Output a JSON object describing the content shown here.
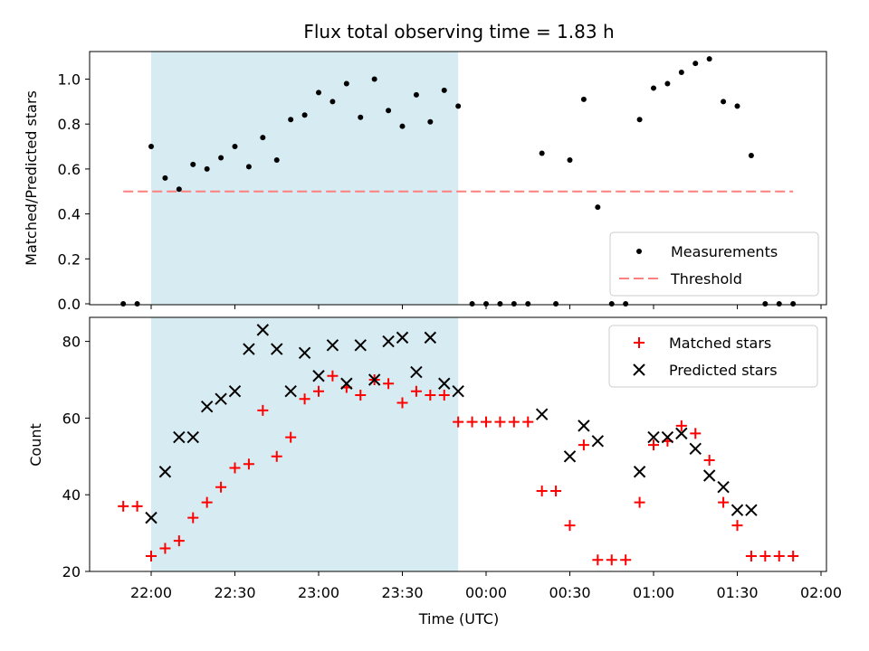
{
  "chart_data": [
    {
      "type": "scatter",
      "title": "Flux total observing time = 1.83 h",
      "ylabel": "Matched/Predicted stars",
      "xlabel": "",
      "ylim": [
        0,
        1.14
      ],
      "yticks": [
        "0.0",
        "0.2",
        "0.4",
        "0.6",
        "0.8",
        "1.0"
      ],
      "x_unit": "minutes after 22:00 UTC",
      "shaded_interval": [
        0,
        110
      ],
      "legend": {
        "placement": "lower right",
        "entries": [
          "Measurements",
          "Threshold"
        ]
      },
      "colors": {
        "measurements": "#000000",
        "threshold": "#ff7f7f",
        "shade": "#add8e6"
      },
      "threshold": {
        "name": "Threshold",
        "value": 0.5,
        "x_range": [
          -10,
          230
        ]
      },
      "series": [
        {
          "name": "Measurements",
          "points": [
            [
              -10,
              0.0
            ],
            [
              -5,
              0.0
            ],
            [
              0,
              0.7
            ],
            [
              5,
              0.56
            ],
            [
              10,
              0.51
            ],
            [
              15,
              0.62
            ],
            [
              20,
              0.6
            ],
            [
              25,
              0.65
            ],
            [
              30,
              0.7
            ],
            [
              35,
              0.61
            ],
            [
              40,
              0.74
            ],
            [
              45,
              0.64
            ],
            [
              50,
              0.82
            ],
            [
              55,
              0.84
            ],
            [
              60,
              0.94
            ],
            [
              65,
              0.9
            ],
            [
              70,
              0.98
            ],
            [
              75,
              0.83
            ],
            [
              80,
              1.0
            ],
            [
              85,
              0.86
            ],
            [
              90,
              0.79
            ],
            [
              95,
              0.93
            ],
            [
              100,
              0.81
            ],
            [
              105,
              0.95
            ],
            [
              110,
              0.88
            ],
            [
              115,
              0.0
            ],
            [
              120,
              0.0
            ],
            [
              125,
              0.0
            ],
            [
              130,
              0.0
            ],
            [
              135,
              0.0
            ],
            [
              140,
              0.67
            ],
            [
              145,
              0.0
            ],
            [
              150,
              0.64
            ],
            [
              155,
              0.91
            ],
            [
              160,
              0.43
            ],
            [
              165,
              0.0
            ],
            [
              170,
              0.0
            ],
            [
              175,
              0.82
            ],
            [
              180,
              0.96
            ],
            [
              185,
              0.98
            ],
            [
              190,
              1.03
            ],
            [
              195,
              1.07
            ],
            [
              200,
              1.09
            ],
            [
              205,
              0.9
            ],
            [
              210,
              0.88
            ],
            [
              215,
              0.66
            ],
            [
              220,
              0.0
            ],
            [
              225,
              0.0
            ],
            [
              230,
              0.0
            ]
          ]
        }
      ]
    },
    {
      "type": "scatter",
      "title": "",
      "ylabel": "Count",
      "xlabel": "Time (UTC)",
      "ylim": [
        20,
        87
      ],
      "yticks": [
        "20",
        "40",
        "60",
        "80"
      ],
      "x_unit": "minutes after 22:00 UTC",
      "xticks": [
        "22:00",
        "22:30",
        "23:00",
        "23:30",
        "00:00",
        "00:30",
        "01:00",
        "01:30",
        "02:00"
      ],
      "shaded_interval": [
        0,
        110
      ],
      "legend": {
        "placement": "upper right",
        "entries": [
          "Matched stars",
          "Predicted stars"
        ]
      },
      "colors": {
        "matched": "#ff0000",
        "predicted": "#000000",
        "shade": "#add8e6"
      },
      "series": [
        {
          "name": "Matched stars",
          "points": [
            [
              -10,
              37
            ],
            [
              -5,
              37
            ],
            [
              0,
              24
            ],
            [
              5,
              26
            ],
            [
              10,
              28
            ],
            [
              15,
              34
            ],
            [
              20,
              38
            ],
            [
              25,
              42
            ],
            [
              30,
              47
            ],
            [
              35,
              48
            ],
            [
              40,
              62
            ],
            [
              45,
              50
            ],
            [
              50,
              55
            ],
            [
              55,
              65
            ],
            [
              60,
              67
            ],
            [
              65,
              71
            ],
            [
              70,
              68
            ],
            [
              75,
              66
            ],
            [
              80,
              70
            ],
            [
              85,
              69
            ],
            [
              90,
              64
            ],
            [
              95,
              67
            ],
            [
              100,
              66
            ],
            [
              105,
              66
            ],
            [
              110,
              59
            ],
            [
              115,
              59
            ],
            [
              120,
              59
            ],
            [
              125,
              59
            ],
            [
              130,
              59
            ],
            [
              135,
              59
            ],
            [
              140,
              41
            ],
            [
              145,
              41
            ],
            [
              150,
              32
            ],
            [
              155,
              53
            ],
            [
              160,
              23
            ],
            [
              165,
              23
            ],
            [
              170,
              23
            ],
            [
              175,
              38
            ],
            [
              180,
              53
            ],
            [
              185,
              54
            ],
            [
              190,
              58
            ],
            [
              195,
              56
            ],
            [
              200,
              49
            ],
            [
              205,
              38
            ],
            [
              210,
              32
            ],
            [
              215,
              24
            ],
            [
              220,
              24
            ],
            [
              225,
              24
            ],
            [
              230,
              24
            ]
          ]
        },
        {
          "name": "Predicted stars",
          "points": [
            [
              0,
              34
            ],
            [
              5,
              46
            ],
            [
              10,
              55
            ],
            [
              15,
              55
            ],
            [
              20,
              63
            ],
            [
              25,
              65
            ],
            [
              30,
              67
            ],
            [
              35,
              78
            ],
            [
              40,
              83
            ],
            [
              45,
              78
            ],
            [
              50,
              67
            ],
            [
              55,
              77
            ],
            [
              60,
              71
            ],
            [
              65,
              79
            ],
            [
              70,
              69
            ],
            [
              75,
              79
            ],
            [
              80,
              70
            ],
            [
              85,
              80
            ],
            [
              90,
              81
            ],
            [
              95,
              72
            ],
            [
              100,
              81
            ],
            [
              105,
              69
            ],
            [
              110,
              67
            ],
            [
              140,
              61
            ],
            [
              150,
              50
            ],
            [
              155,
              58
            ],
            [
              160,
              54
            ],
            [
              175,
              46
            ],
            [
              180,
              55
            ],
            [
              185,
              55
            ],
            [
              190,
              56
            ],
            [
              195,
              52
            ],
            [
              200,
              45
            ],
            [
              205,
              42
            ],
            [
              210,
              36
            ],
            [
              215,
              36
            ]
          ]
        }
      ]
    }
  ]
}
